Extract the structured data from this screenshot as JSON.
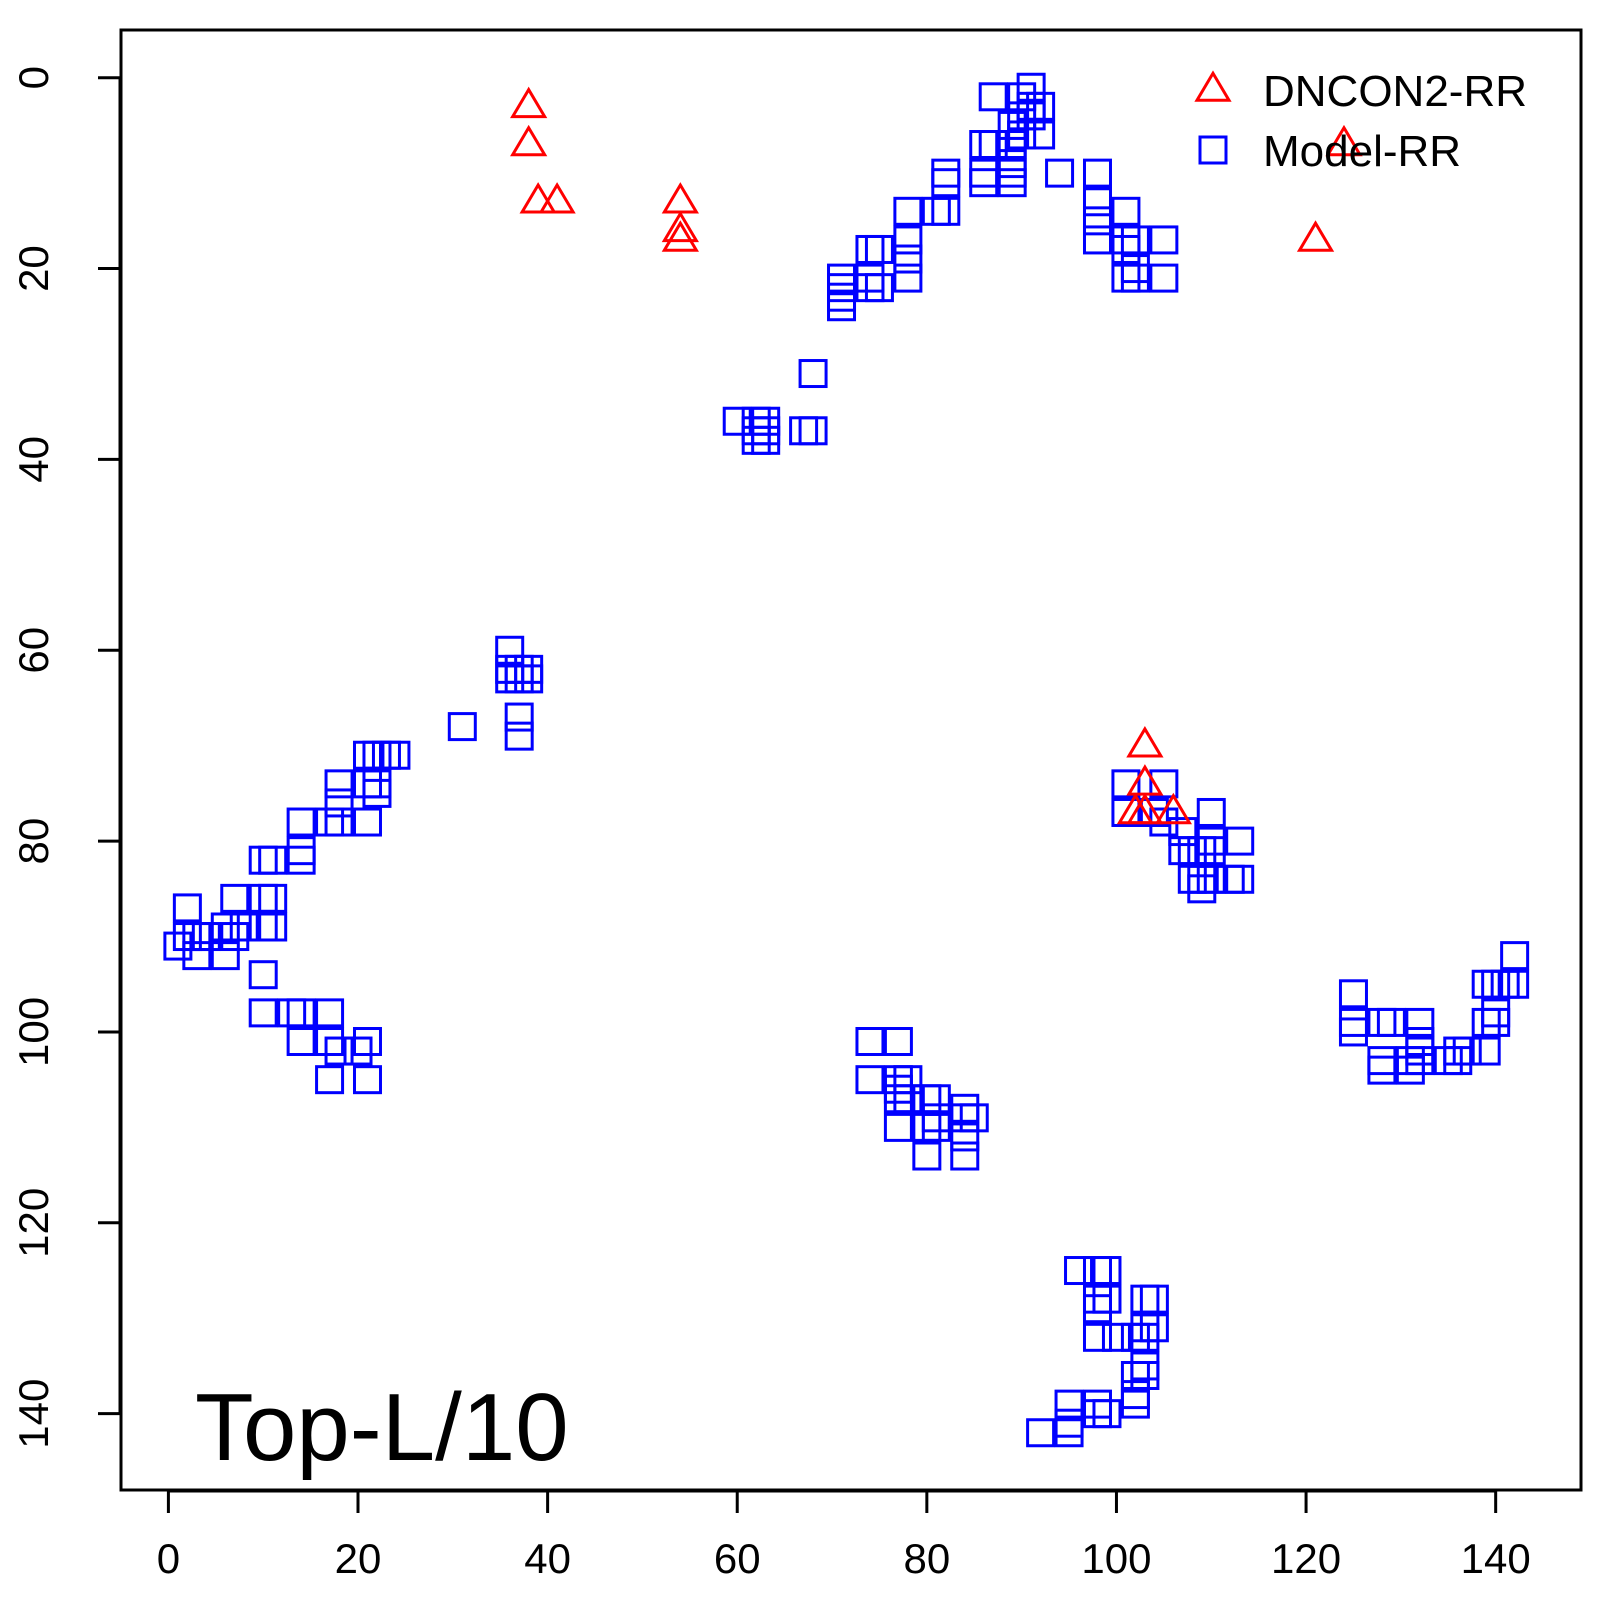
{
  "chart_data": {
    "type": "scatter",
    "title": "",
    "xlabel": "",
    "ylabel": "",
    "xlim": [
      -5,
      149
    ],
    "ylim": [
      -5,
      148
    ],
    "y_reversed": true,
    "x_ticks": [
      0,
      20,
      40,
      60,
      80,
      100,
      120,
      140
    ],
    "y_ticks": [
      0,
      20,
      40,
      60,
      80,
      100,
      120,
      140
    ],
    "grid": false,
    "legend_position": "top-right",
    "annotation": "Top-L/10",
    "series": [
      {
        "name": "DNCON2-RR",
        "marker": "triangle",
        "color": "#ff0000",
        "points": [
          [
            38,
            3
          ],
          [
            38,
            7
          ],
          [
            39,
            13
          ],
          [
            41,
            13
          ],
          [
            54,
            13
          ],
          [
            54,
            16
          ],
          [
            54,
            17
          ],
          [
            103,
            70
          ],
          [
            103,
            74
          ],
          [
            102,
            77
          ],
          [
            103,
            77
          ],
          [
            106,
            77
          ],
          [
            121,
            17
          ],
          [
            124,
            7
          ]
        ]
      },
      {
        "name": "Model-RR",
        "marker": "square",
        "color": "#0000ff",
        "points": [
          [
            1,
            91
          ],
          [
            2,
            87
          ],
          [
            2,
            90
          ],
          [
            3,
            90
          ],
          [
            3,
            92
          ],
          [
            4,
            90
          ],
          [
            6,
            89
          ],
          [
            6,
            92
          ],
          [
            7,
            86
          ],
          [
            7,
            90
          ],
          [
            8,
            89
          ],
          [
            10,
            82
          ],
          [
            10,
            86
          ],
          [
            10,
            89
          ],
          [
            10,
            94
          ],
          [
            10,
            98
          ],
          [
            11,
            82
          ],
          [
            11,
            86
          ],
          [
            11,
            89
          ],
          [
            13,
            98
          ],
          [
            14,
            78
          ],
          [
            14,
            81
          ],
          [
            14,
            82
          ],
          [
            14,
            98
          ],
          [
            14,
            101
          ],
          [
            17,
            78
          ],
          [
            17,
            98
          ],
          [
            17,
            101
          ],
          [
            17,
            105
          ],
          [
            18,
            74
          ],
          [
            18,
            76
          ],
          [
            18,
            78
          ],
          [
            18,
            102
          ],
          [
            20,
            102
          ],
          [
            21,
            71
          ],
          [
            21,
            74
          ],
          [
            21,
            78
          ],
          [
            21,
            101
          ],
          [
            21,
            105
          ],
          [
            22,
            71
          ],
          [
            22,
            74
          ],
          [
            22,
            75
          ],
          [
            23,
            71
          ],
          [
            24,
            71
          ],
          [
            31,
            68
          ],
          [
            36,
            60
          ],
          [
            36,
            62
          ],
          [
            36,
            63
          ],
          [
            37,
            62
          ],
          [
            37,
            63
          ],
          [
            37,
            67
          ],
          [
            37,
            69
          ],
          [
            38,
            62
          ],
          [
            38,
            63
          ],
          [
            60,
            36
          ],
          [
            62,
            36
          ],
          [
            62,
            37
          ],
          [
            62,
            38
          ],
          [
            63,
            36
          ],
          [
            63,
            37
          ],
          [
            63,
            38
          ],
          [
            67,
            37
          ],
          [
            68,
            31
          ],
          [
            68,
            37
          ],
          [
            71,
            21
          ],
          [
            71,
            22
          ],
          [
            71,
            23
          ],
          [
            71,
            24
          ],
          [
            74,
            18
          ],
          [
            74,
            21
          ],
          [
            74,
            22
          ],
          [
            75,
            18
          ],
          [
            75,
            22
          ],
          [
            78,
            14
          ],
          [
            78,
            17
          ],
          [
            78,
            19
          ],
          [
            78,
            21
          ],
          [
            81,
            14
          ],
          [
            82,
            10
          ],
          [
            82,
            11
          ],
          [
            82,
            14
          ],
          [
            86,
            7
          ],
          [
            86,
            10
          ],
          [
            86,
            11
          ],
          [
            87,
            2
          ],
          [
            87,
            7
          ],
          [
            89,
            5
          ],
          [
            89,
            7
          ],
          [
            89,
            9
          ],
          [
            89,
            10
          ],
          [
            89,
            11
          ],
          [
            90,
            2
          ],
          [
            90,
            4
          ],
          [
            90,
            6
          ],
          [
            91,
            1
          ],
          [
            91,
            3
          ],
          [
            91,
            4
          ],
          [
            92,
            3
          ],
          [
            92,
            6
          ],
          [
            94,
            10
          ],
          [
            98,
            10
          ],
          [
            98,
            13
          ],
          [
            98,
            15
          ],
          [
            98,
            17
          ],
          [
            101,
            14
          ],
          [
            101,
            17
          ],
          [
            101,
            18
          ],
          [
            101,
            21
          ],
          [
            102,
            17
          ],
          [
            102,
            20
          ],
          [
            102,
            21
          ],
          [
            105,
            17
          ],
          [
            105,
            21
          ],
          [
            74,
            101
          ],
          [
            74,
            105
          ],
          [
            77,
            101
          ],
          [
            77,
            105
          ],
          [
            77,
            106
          ],
          [
            77,
            107
          ],
          [
            77,
            110
          ],
          [
            78,
            105
          ],
          [
            78,
            107
          ],
          [
            80,
            107
          ],
          [
            80,
            110
          ],
          [
            80,
            113
          ],
          [
            81,
            107
          ],
          [
            81,
            109
          ],
          [
            81,
            110
          ],
          [
            84,
            108
          ],
          [
            84,
            109
          ],
          [
            84,
            111
          ],
          [
            84,
            113
          ],
          [
            85,
            109
          ],
          [
            101,
            74
          ],
          [
            101,
            77
          ],
          [
            104,
            77
          ],
          [
            105,
            74
          ],
          [
            105,
            78
          ],
          [
            107,
            79
          ],
          [
            107,
            81
          ],
          [
            108,
            81
          ],
          [
            108,
            84
          ],
          [
            109,
            81
          ],
          [
            109,
            84
          ],
          [
            109,
            85
          ],
          [
            110,
            77
          ],
          [
            110,
            80
          ],
          [
            110,
            81
          ],
          [
            110,
            84
          ],
          [
            112,
            84
          ],
          [
            113,
            80
          ],
          [
            113,
            84
          ],
          [
            96,
            125
          ],
          [
            98,
            125
          ],
          [
            98,
            128
          ],
          [
            98,
            129
          ],
          [
            98,
            132
          ],
          [
            99,
            125
          ],
          [
            99,
            128
          ],
          [
            100,
            132
          ],
          [
            102,
            132
          ],
          [
            102,
            136
          ],
          [
            102,
            138
          ],
          [
            102,
            139
          ],
          [
            103,
            128
          ],
          [
            103,
            131
          ],
          [
            103,
            132
          ],
          [
            103,
            135
          ],
          [
            103,
            136
          ],
          [
            104,
            128
          ],
          [
            104,
            131
          ],
          [
            92,
            142
          ],
          [
            95,
            139
          ],
          [
            95,
            141
          ],
          [
            95,
            142
          ],
          [
            98,
            139
          ],
          [
            98,
            140
          ],
          [
            99,
            140
          ],
          [
            125,
            96
          ],
          [
            125,
            99
          ],
          [
            125,
            100
          ],
          [
            128,
            99
          ],
          [
            128,
            103
          ],
          [
            128,
            104
          ],
          [
            129,
            99
          ],
          [
            131,
            103
          ],
          [
            131,
            104
          ],
          [
            132,
            99
          ],
          [
            132,
            101
          ],
          [
            132,
            102
          ],
          [
            132,
            103
          ],
          [
            135,
            103
          ],
          [
            136,
            102
          ],
          [
            136,
            103
          ],
          [
            137,
            102
          ],
          [
            139,
            95
          ],
          [
            139,
            99
          ],
          [
            139,
            102
          ],
          [
            140,
            95
          ],
          [
            140,
            98
          ],
          [
            140,
            99
          ],
          [
            141,
            95
          ],
          [
            142,
            92
          ],
          [
            142,
            95
          ]
        ]
      }
    ]
  }
}
